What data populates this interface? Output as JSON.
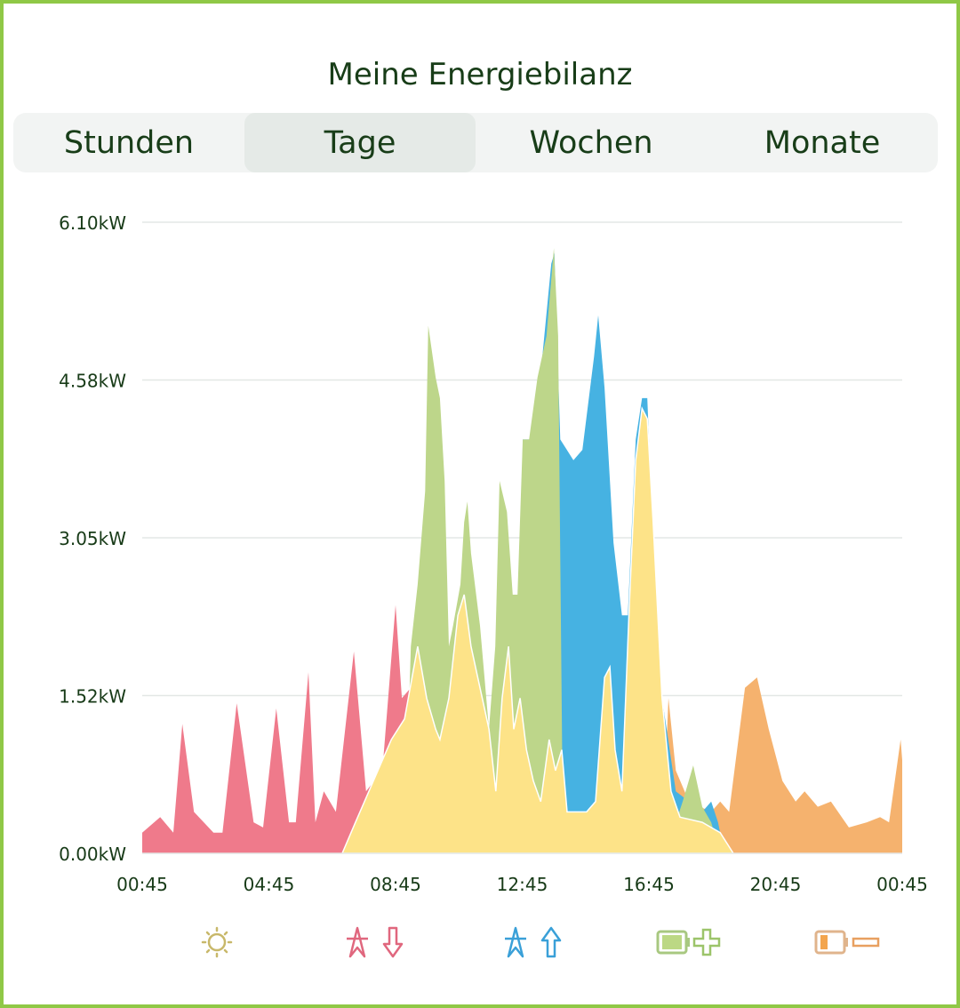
{
  "title": "Meine Energiebilanz",
  "tabs": [
    {
      "label": "Stunden",
      "active": false
    },
    {
      "label": "Tage",
      "active": true
    },
    {
      "label": "Wochen",
      "active": false
    },
    {
      "label": "Monate",
      "active": false
    }
  ],
  "legend": [
    {
      "icon": "sun-icon",
      "color": "#c8b86a"
    },
    {
      "icon": "grid-import-icon",
      "color": "#e0677e"
    },
    {
      "icon": "grid-export-icon",
      "color": "#3aa0d8"
    },
    {
      "icon": "battery-charge-icon",
      "color": "#9cc46a"
    },
    {
      "icon": "battery-discharge-icon",
      "color": "#e8a060"
    }
  ],
  "chart_data": {
    "type": "area",
    "ylim": [
      0,
      6.1
    ],
    "y_ticks": [
      "0.00kW",
      "1.52kW",
      "3.05kW",
      "4.58kW",
      "6.10kW"
    ],
    "y_tick_values": [
      0,
      1.525,
      3.05,
      4.575,
      6.1
    ],
    "x_ticks": [
      "00:45",
      "04:45",
      "08:45",
      "12:45",
      "16:45",
      "20:45",
      "00:45"
    ],
    "grid": true,
    "series": [
      {
        "key": "import",
        "color": "#ef7a8b",
        "points": [
          [
            "00:45",
            0.2
          ],
          [
            "01:19",
            0.35
          ],
          [
            "01:44",
            0.2
          ],
          [
            "02:01",
            1.25
          ],
          [
            "02:23",
            0.4
          ],
          [
            "03:00",
            0.2
          ],
          [
            "03:17",
            0.2
          ],
          [
            "03:44",
            1.45
          ],
          [
            "04:16",
            0.3
          ],
          [
            "04:34",
            0.25
          ],
          [
            "04:59",
            1.4
          ],
          [
            "05:23",
            0.3
          ],
          [
            "05:36",
            0.3
          ],
          [
            "06:00",
            1.75
          ],
          [
            "06:13",
            0.3
          ],
          [
            "06:29",
            0.6
          ],
          [
            "06:52",
            0.4
          ],
          [
            "07:26",
            1.95
          ],
          [
            "07:49",
            0.6
          ],
          [
            "08:20",
            0.8
          ],
          [
            "08:45",
            2.4
          ],
          [
            "08:57",
            1.5
          ],
          [
            "09:14",
            1.6
          ],
          [
            "09:30",
            2.6
          ],
          [
            "09:41",
            0
          ]
        ]
      },
      {
        "key": "discharge",
        "color": "#f5b26e",
        "points": [
          [
            "17:10",
            0
          ],
          [
            "17:22",
            1.5
          ],
          [
            "17:36",
            0.8
          ],
          [
            "18:01",
            0.5
          ],
          [
            "18:43",
            0.4
          ],
          [
            "19:00",
            0.5
          ],
          [
            "19:17",
            0.4
          ],
          [
            "19:47",
            1.6
          ],
          [
            "20:10",
            1.7
          ],
          [
            "20:32",
            1.2
          ],
          [
            "20:58",
            0.7
          ],
          [
            "21:23",
            0.5
          ],
          [
            "21:40",
            0.6
          ],
          [
            "22:05",
            0.45
          ],
          [
            "22:30",
            0.5
          ],
          [
            "23:04",
            0.25
          ],
          [
            "23:38",
            0.3
          ],
          [
            "00:03",
            0.35
          ],
          [
            "00:20",
            0.3
          ],
          [
            "00:42",
            1.1
          ],
          [
            "00:45",
            0.9
          ]
        ]
      },
      {
        "key": "export",
        "color": "#46b2e2",
        "points": [
          [
            "12:37",
            0
          ],
          [
            "12:46",
            4.0
          ],
          [
            "13:01",
            4.0
          ],
          [
            "13:23",
            4.8
          ],
          [
            "13:40",
            5.7
          ],
          [
            "13:46",
            5.8
          ],
          [
            "13:57",
            4.0
          ],
          [
            "14:22",
            3.8
          ],
          [
            "14:39",
            3.9
          ],
          [
            "15:01",
            4.8
          ],
          [
            "15:09",
            5.2
          ],
          [
            "15:21",
            4.5
          ],
          [
            "15:38",
            3.0
          ],
          [
            "15:54",
            2.3
          ],
          [
            "16:05",
            2.3
          ],
          [
            "16:20",
            4.0
          ],
          [
            "16:32",
            4.4
          ],
          [
            "16:42",
            4.4
          ],
          [
            "16:53",
            3.0
          ],
          [
            "17:10",
            1.5
          ],
          [
            "17:36",
            0.6
          ],
          [
            "18:01",
            0.5
          ],
          [
            "18:09",
            0.8
          ],
          [
            "18:26",
            0.4
          ],
          [
            "18:43",
            0.5
          ],
          [
            "18:56",
            0.3
          ],
          [
            "19:08",
            0
          ]
        ]
      },
      {
        "key": "charge",
        "color": "#bdd68a",
        "points": [
          [
            "09:02",
            0
          ],
          [
            "09:14",
            2.0
          ],
          [
            "09:27",
            2.6
          ],
          [
            "09:41",
            3.5
          ],
          [
            "09:47",
            5.1
          ],
          [
            "10:01",
            4.6
          ],
          [
            "10:09",
            4.4
          ],
          [
            "10:18",
            3.6
          ],
          [
            "10:26",
            2.0
          ],
          [
            "10:34",
            2.2
          ],
          [
            "10:48",
            2.6
          ],
          [
            "10:55",
            3.2
          ],
          [
            "11:01",
            3.4
          ],
          [
            "11:08",
            2.9
          ],
          [
            "11:25",
            2.2
          ],
          [
            "11:42",
            1.2
          ],
          [
            "11:54",
            2.0
          ],
          [
            "12:02",
            3.6
          ],
          [
            "12:16",
            3.3
          ],
          [
            "12:27",
            2.5
          ],
          [
            "12:36",
            2.5
          ],
          [
            "12:46",
            4.0
          ],
          [
            "12:58",
            4.0
          ],
          [
            "13:14",
            4.6
          ],
          [
            "13:31",
            5.0
          ],
          [
            "13:45",
            5.85
          ],
          [
            "13:53",
            5.0
          ],
          [
            "14:02",
            0.3
          ],
          [
            "17:36",
            0.3
          ],
          [
            "17:49",
            0.5
          ],
          [
            "18:09",
            0.85
          ],
          [
            "18:26",
            0.45
          ],
          [
            "18:43",
            0.3
          ],
          [
            "19:00",
            0
          ]
        ]
      },
      {
        "key": "solar",
        "color": "#fde388",
        "points": [
          [
            "07:04",
            0
          ],
          [
            "07:29",
            0.3
          ],
          [
            "08:03",
            0.7
          ],
          [
            "08:37",
            1.1
          ],
          [
            "09:02",
            1.3
          ],
          [
            "09:27",
            2.0
          ],
          [
            "09:44",
            1.5
          ],
          [
            "10:01",
            1.2
          ],
          [
            "10:09",
            1.1
          ],
          [
            "10:26",
            1.5
          ],
          [
            "10:43",
            2.3
          ],
          [
            "10:55",
            2.5
          ],
          [
            "11:08",
            2.0
          ],
          [
            "11:25",
            1.6
          ],
          [
            "11:42",
            1.2
          ],
          [
            "11:55",
            0.6
          ],
          [
            "12:07",
            1.5
          ],
          [
            "12:19",
            2.0
          ],
          [
            "12:29",
            1.2
          ],
          [
            "12:41",
            1.5
          ],
          [
            "12:53",
            1.0
          ],
          [
            "13:06",
            0.7
          ],
          [
            "13:20",
            0.5
          ],
          [
            "13:36",
            1.1
          ],
          [
            "13:48",
            0.8
          ],
          [
            "14:00",
            1.0
          ],
          [
            "14:10",
            0.4
          ],
          [
            "14:27",
            0.4
          ],
          [
            "14:47",
            0.4
          ],
          [
            "15:04",
            0.5
          ],
          [
            "15:21",
            1.7
          ],
          [
            "15:31",
            1.8
          ],
          [
            "15:41",
            1.0
          ],
          [
            "15:54",
            0.6
          ],
          [
            "16:08",
            2.4
          ],
          [
            "16:20",
            3.8
          ],
          [
            "16:32",
            4.3
          ],
          [
            "16:42",
            4.2
          ],
          [
            "16:53",
            3.2
          ],
          [
            "17:10",
            1.5
          ],
          [
            "17:27",
            0.6
          ],
          [
            "17:44",
            0.35
          ],
          [
            "18:26",
            0.3
          ],
          [
            "19:00",
            0.2
          ],
          [
            "19:25",
            0
          ]
        ]
      }
    ]
  }
}
